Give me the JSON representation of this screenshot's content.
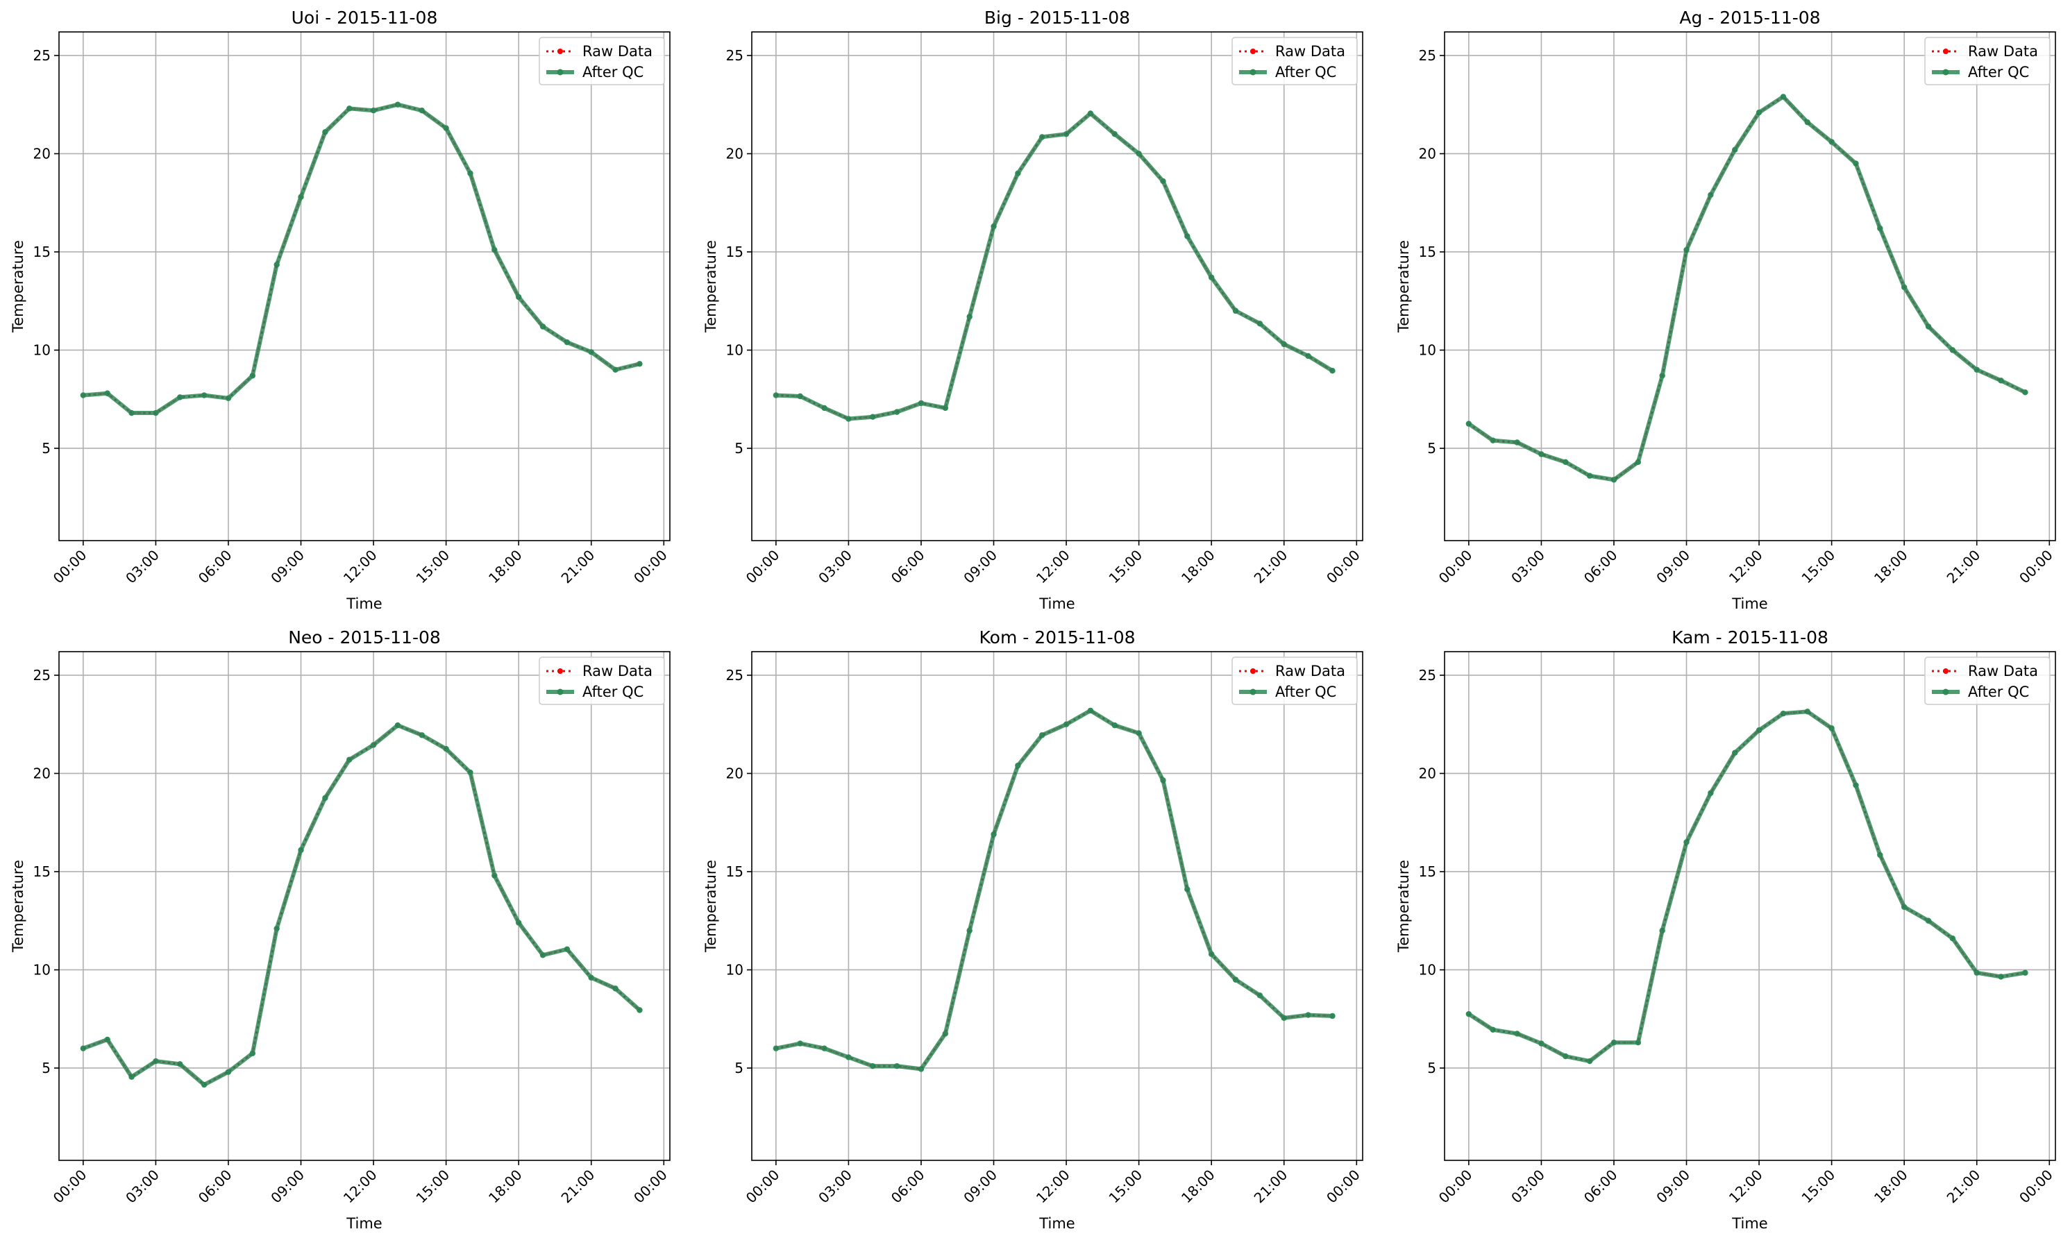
{
  "figure": {
    "background": "#ffffff"
  },
  "styles": {
    "raw_color": "#ff0000",
    "qc_color": "#2e8b57",
    "qc_alpha": 0.85,
    "grid": true,
    "legend_loc": "upper right"
  },
  "legend": {
    "raw_label": "Raw Data",
    "qc_label": "After QC"
  },
  "chart_data": [
    {
      "type": "line",
      "title": "Uoi - 2015-11-08",
      "xlabel": "Time",
      "ylabel": "Temperature",
      "x_ticks": [
        "00:00",
        "03:00",
        "06:00",
        "09:00",
        "12:00",
        "15:00",
        "18:00",
        "21:00",
        "00:00"
      ],
      "y_ticks": [
        5,
        10,
        15,
        20,
        25
      ],
      "xlim": [
        "-1:00",
        "24:15"
      ],
      "ylim": [
        0.3,
        26.2
      ],
      "x_hours": [
        0,
        1,
        2,
        3,
        4,
        5,
        6,
        7,
        8,
        9,
        10,
        11,
        12,
        13,
        14,
        15,
        16,
        17,
        18,
        19,
        20,
        21,
        22,
        23
      ],
      "series": [
        {
          "name": "Raw Data",
          "values": [
            7.7,
            7.8,
            6.8,
            6.8,
            7.6,
            7.7,
            7.55,
            8.7,
            14.35,
            17.8,
            21.1,
            22.3,
            22.2,
            22.5,
            22.2,
            21.3,
            19.0,
            15.1,
            12.7,
            11.2,
            10.4,
            9.9,
            9.0,
            9.3
          ]
        },
        {
          "name": "After QC",
          "values": [
            7.7,
            7.8,
            6.8,
            6.8,
            7.6,
            7.7,
            7.55,
            8.7,
            14.35,
            17.8,
            21.1,
            22.3,
            22.2,
            22.5,
            22.2,
            21.3,
            19.0,
            15.1,
            12.7,
            11.2,
            10.4,
            9.9,
            9.0,
            9.3
          ]
        }
      ]
    },
    {
      "type": "line",
      "title": "Big - 2015-11-08",
      "xlabel": "Time",
      "ylabel": "Temperature",
      "x_ticks": [
        "00:00",
        "03:00",
        "06:00",
        "09:00",
        "12:00",
        "15:00",
        "18:00",
        "21:00",
        "00:00"
      ],
      "y_ticks": [
        5,
        10,
        15,
        20,
        25
      ],
      "xlim": [
        "-1:00",
        "24:15"
      ],
      "ylim": [
        0.3,
        26.2
      ],
      "x_hours": [
        0,
        1,
        2,
        3,
        4,
        5,
        6,
        7,
        8,
        9,
        10,
        11,
        12,
        13,
        14,
        15,
        16,
        17,
        18,
        19,
        20,
        21,
        22,
        23
      ],
      "series": [
        {
          "name": "Raw Data",
          "values": [
            7.7,
            7.65,
            7.05,
            6.5,
            6.6,
            6.85,
            7.3,
            7.05,
            11.7,
            16.3,
            19.0,
            20.85,
            21.0,
            22.05,
            21.0,
            20.0,
            18.6,
            15.8,
            13.7,
            12.0,
            11.35,
            10.3,
            9.7,
            8.95
          ]
        },
        {
          "name": "After QC",
          "values": [
            7.7,
            7.65,
            7.05,
            6.5,
            6.6,
            6.85,
            7.3,
            7.05,
            11.7,
            16.3,
            19.0,
            20.85,
            21.0,
            22.05,
            21.0,
            20.0,
            18.6,
            15.8,
            13.7,
            12.0,
            11.35,
            10.3,
            9.7,
            8.95
          ]
        }
      ]
    },
    {
      "type": "line",
      "title": "Ag - 2015-11-08",
      "xlabel": "Time",
      "ylabel": "Temperature",
      "x_ticks": [
        "00:00",
        "03:00",
        "06:00",
        "09:00",
        "12:00",
        "15:00",
        "18:00",
        "21:00",
        "00:00"
      ],
      "y_ticks": [
        5,
        10,
        15,
        20,
        25
      ],
      "xlim": [
        "-1:00",
        "24:15"
      ],
      "ylim": [
        0.3,
        26.2
      ],
      "x_hours": [
        0,
        1,
        2,
        3,
        4,
        5,
        6,
        7,
        8,
        9,
        10,
        11,
        12,
        13,
        14,
        15,
        16,
        17,
        18,
        19,
        20,
        21,
        22,
        23
      ],
      "series": [
        {
          "name": "Raw Data",
          "values": [
            6.25,
            5.4,
            5.3,
            4.7,
            4.3,
            3.6,
            3.4,
            4.3,
            8.7,
            15.1,
            17.9,
            20.2,
            22.1,
            22.9,
            21.6,
            20.6,
            19.5,
            16.2,
            13.2,
            11.2,
            10.0,
            9.0,
            8.45,
            7.85
          ]
        },
        {
          "name": "After QC",
          "values": [
            6.25,
            5.4,
            5.3,
            4.7,
            4.3,
            3.6,
            3.4,
            4.3,
            8.7,
            15.1,
            17.9,
            20.2,
            22.1,
            22.9,
            21.6,
            20.6,
            19.5,
            16.2,
            13.2,
            11.2,
            10.0,
            9.0,
            8.45,
            7.85
          ]
        }
      ]
    },
    {
      "type": "line",
      "title": "Neo - 2015-11-08",
      "xlabel": "Time",
      "ylabel": "Temperature",
      "x_ticks": [
        "00:00",
        "03:00",
        "06:00",
        "09:00",
        "12:00",
        "15:00",
        "18:00",
        "21:00",
        "00:00"
      ],
      "y_ticks": [
        5,
        10,
        15,
        20,
        25
      ],
      "xlim": [
        "-1:00",
        "24:15"
      ],
      "ylim": [
        0.3,
        26.2
      ],
      "x_hours": [
        0,
        1,
        2,
        3,
        4,
        5,
        6,
        7,
        8,
        9,
        10,
        11,
        12,
        13,
        14,
        15,
        16,
        17,
        18,
        19,
        20,
        21,
        22,
        23
      ],
      "series": [
        {
          "name": "Raw Data",
          "values": [
            6.0,
            6.45,
            4.55,
            5.35,
            5.2,
            4.15,
            4.8,
            5.75,
            12.1,
            16.1,
            18.75,
            20.7,
            21.45,
            22.45,
            21.95,
            21.25,
            20.05,
            14.8,
            12.4,
            10.75,
            11.05,
            9.6,
            9.05,
            7.95
          ]
        },
        {
          "name": "After QC",
          "values": [
            6.0,
            6.45,
            4.55,
            5.35,
            5.2,
            4.15,
            4.8,
            5.75,
            12.1,
            16.1,
            18.75,
            20.7,
            21.45,
            22.45,
            21.95,
            21.25,
            20.05,
            14.8,
            12.4,
            10.75,
            11.05,
            9.6,
            9.05,
            7.95
          ]
        }
      ]
    },
    {
      "type": "line",
      "title": "Kom - 2015-11-08",
      "xlabel": "Time",
      "ylabel": "Temperature",
      "x_ticks": [
        "00:00",
        "03:00",
        "06:00",
        "09:00",
        "12:00",
        "15:00",
        "18:00",
        "21:00",
        "00:00"
      ],
      "y_ticks": [
        5,
        10,
        15,
        20,
        25
      ],
      "xlim": [
        "-1:00",
        "24:15"
      ],
      "ylim": [
        0.3,
        26.2
      ],
      "x_hours": [
        0,
        1,
        2,
        3,
        4,
        5,
        6,
        7,
        8,
        9,
        10,
        11,
        12,
        13,
        14,
        15,
        16,
        17,
        18,
        19,
        20,
        21,
        22,
        23
      ],
      "series": [
        {
          "name": "Raw Data",
          "values": [
            6.0,
            6.25,
            6.0,
            5.55,
            5.1,
            5.1,
            4.95,
            6.75,
            12.0,
            16.9,
            20.4,
            21.95,
            22.5,
            23.2,
            22.45,
            22.05,
            19.65,
            14.1,
            10.8,
            9.5,
            8.7,
            7.55,
            7.7,
            7.65
          ]
        },
        {
          "name": "After QC",
          "values": [
            6.0,
            6.25,
            6.0,
            5.55,
            5.1,
            5.1,
            4.95,
            6.75,
            12.0,
            16.9,
            20.4,
            21.95,
            22.5,
            23.2,
            22.45,
            22.05,
            19.65,
            14.1,
            10.8,
            9.5,
            8.7,
            7.55,
            7.7,
            7.65
          ]
        }
      ]
    },
    {
      "type": "line",
      "title": "Kam - 2015-11-08",
      "xlabel": "Time",
      "ylabel": "Temperature",
      "x_ticks": [
        "00:00",
        "03:00",
        "06:00",
        "09:00",
        "12:00",
        "15:00",
        "18:00",
        "21:00",
        "00:00"
      ],
      "y_ticks": [
        5,
        10,
        15,
        20,
        25
      ],
      "xlim": [
        "-1:00",
        "24:15"
      ],
      "ylim": [
        0.3,
        26.2
      ],
      "x_hours": [
        0,
        1,
        2,
        3,
        4,
        5,
        6,
        7,
        8,
        9,
        10,
        11,
        12,
        13,
        14,
        15,
        16,
        17,
        18,
        19,
        20,
        21,
        22,
        23
      ],
      "series": [
        {
          "name": "Raw Data",
          "values": [
            7.75,
            6.95,
            6.75,
            6.25,
            5.6,
            5.35,
            6.3,
            6.3,
            12.0,
            16.5,
            19.0,
            21.05,
            22.2,
            23.05,
            23.15,
            22.3,
            19.4,
            15.85,
            13.2,
            12.5,
            11.6,
            9.85,
            9.65,
            9.85
          ]
        },
        {
          "name": "After QC",
          "values": [
            7.75,
            6.95,
            6.75,
            6.25,
            5.6,
            5.35,
            6.3,
            6.3,
            12.0,
            16.5,
            19.0,
            21.05,
            22.2,
            23.05,
            23.15,
            22.3,
            19.4,
            15.85,
            13.2,
            12.5,
            11.6,
            9.85,
            9.65,
            9.85
          ]
        }
      ]
    }
  ]
}
